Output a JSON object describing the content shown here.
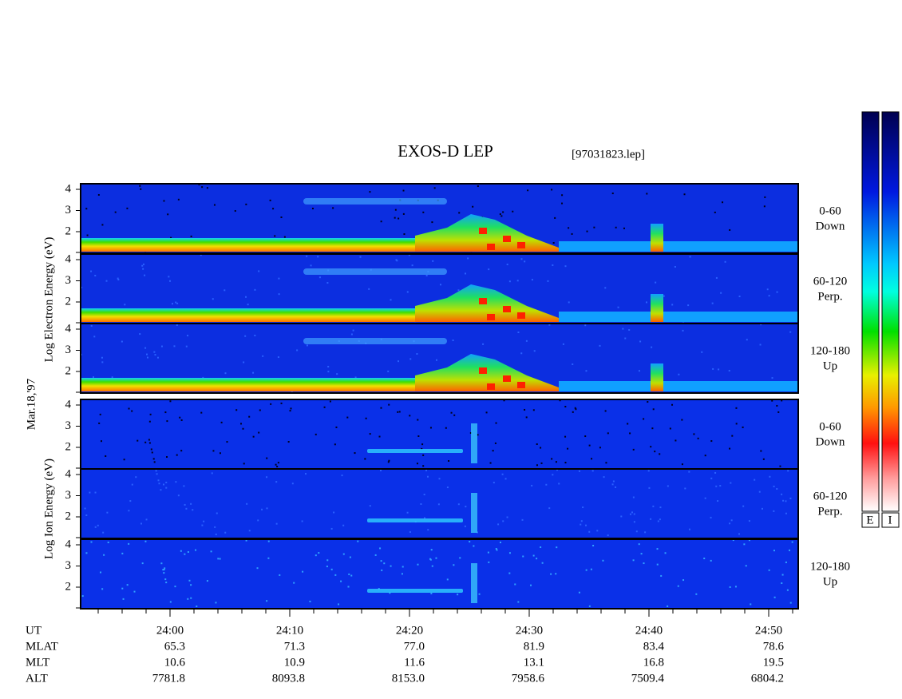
{
  "title": "EXOS-D LEP",
  "file": "[97031823.lep]",
  "date": "Mar.18,'97",
  "electron_axis_label": "Log  Electron  Energy (eV)",
  "ion_axis_label": "Log  Ion  Energy (eV)",
  "y_ticks": [
    "4",
    "3",
    "2"
  ],
  "panels": [
    {
      "angle": "0-60",
      "direction": "Down"
    },
    {
      "angle": "60-120",
      "direction": "Perp."
    },
    {
      "angle": "120-180",
      "direction": "Up"
    },
    {
      "angle": "0-60",
      "direction": "Down"
    },
    {
      "angle": "60-120",
      "direction": "Perp."
    },
    {
      "angle": "120-180",
      "direction": "Up"
    }
  ],
  "colorbar_labels": [
    "E",
    "I"
  ],
  "table": {
    "rows": [
      [
        "UT",
        "24:00",
        "24:10",
        "24:20",
        "24:30",
        "24:40",
        "24:50"
      ],
      [
        "MLAT",
        "65.3",
        "71.3",
        "77.0",
        "81.9",
        "83.4",
        "78.6"
      ],
      [
        "MLT",
        "10.6",
        "10.9",
        "11.6",
        "13.1",
        "16.8",
        "19.5"
      ],
      [
        "ALT",
        "7781.8",
        "8093.8",
        "8153.0",
        "7958.6",
        "7509.4",
        "6804.2"
      ]
    ]
  }
}
